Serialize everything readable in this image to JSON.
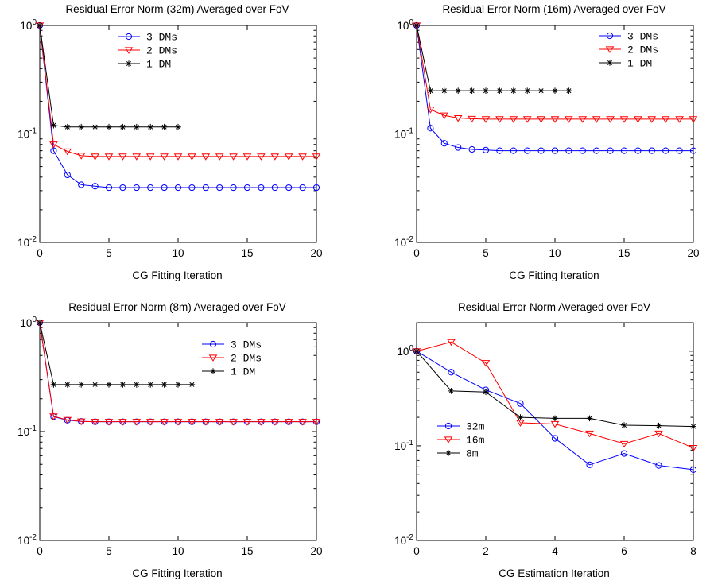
{
  "chart_data": [
    {
      "type": "line",
      "title": "Residual Error Norm (32m) Averaged over FoV",
      "xlabel": "CG Fitting Iteration",
      "ylabel": "",
      "yscale": "log",
      "xlim": [
        0,
        20
      ],
      "ylim": [
        0.01,
        1
      ],
      "xticks": [
        "0",
        "5",
        "10",
        "15",
        "20"
      ],
      "grid": false,
      "legend_position": "top-right",
      "series": [
        {
          "name": "3 DMs",
          "color": "#0000ff",
          "marker": "circle",
          "x": [
            0,
            1,
            2,
            3,
            4,
            5,
            6,
            7,
            8,
            9,
            10,
            11,
            12,
            13,
            14,
            15,
            16,
            17,
            18,
            19,
            20
          ],
          "y": [
            1,
            0.07,
            0.042,
            0.034,
            0.033,
            0.032,
            0.032,
            0.032,
            0.032,
            0.032,
            0.032,
            0.032,
            0.032,
            0.032,
            0.032,
            0.032,
            0.032,
            0.032,
            0.032,
            0.032,
            0.032
          ]
        },
        {
          "name": "2 DMs",
          "color": "#ff0000",
          "marker": "triangle-down",
          "x": [
            0,
            1,
            2,
            3,
            4,
            5,
            6,
            7,
            8,
            9,
            10,
            11,
            12,
            13,
            14,
            15,
            16,
            17,
            18,
            19,
            20
          ],
          "y": [
            1,
            0.08,
            0.069,
            0.063,
            0.062,
            0.062,
            0.062,
            0.062,
            0.062,
            0.062,
            0.062,
            0.062,
            0.062,
            0.062,
            0.062,
            0.062,
            0.062,
            0.062,
            0.062,
            0.062,
            0.062
          ]
        },
        {
          "name": "1 DM",
          "color": "#000000",
          "marker": "star",
          "x": [
            0,
            1,
            2,
            3,
            4,
            5,
            6,
            7,
            8,
            9,
            10
          ],
          "y": [
            1,
            0.12,
            0.116,
            0.116,
            0.116,
            0.116,
            0.116,
            0.116,
            0.116,
            0.116,
            0.116
          ]
        }
      ]
    },
    {
      "type": "line",
      "title": "Residual Error Norm (16m) Averaged over FoV",
      "xlabel": "CG Fitting Iteration",
      "ylabel": "",
      "yscale": "log",
      "xlim": [
        0,
        20
      ],
      "ylim": [
        0.01,
        1
      ],
      "xticks": [
        "0",
        "5",
        "10",
        "15",
        "20"
      ],
      "grid": false,
      "legend_position": "top-right",
      "series": [
        {
          "name": "3 DMs",
          "color": "#0000ff",
          "marker": "circle",
          "x": [
            0,
            1,
            2,
            3,
            4,
            5,
            6,
            7,
            8,
            9,
            10,
            11,
            12,
            13,
            14,
            15,
            16,
            17,
            18,
            19,
            20
          ],
          "y": [
            1,
            0.113,
            0.082,
            0.075,
            0.072,
            0.071,
            0.07,
            0.07,
            0.07,
            0.07,
            0.07,
            0.07,
            0.07,
            0.07,
            0.07,
            0.07,
            0.07,
            0.07,
            0.07,
            0.07,
            0.07
          ]
        },
        {
          "name": "2 DMs",
          "color": "#ff0000",
          "marker": "triangle-down",
          "x": [
            0,
            1,
            2,
            3,
            4,
            5,
            6,
            7,
            8,
            9,
            10,
            11,
            12,
            13,
            14,
            15,
            16,
            17,
            18,
            19,
            20
          ],
          "y": [
            1,
            0.168,
            0.148,
            0.14,
            0.138,
            0.137,
            0.137,
            0.137,
            0.137,
            0.137,
            0.137,
            0.137,
            0.137,
            0.137,
            0.137,
            0.137,
            0.137,
            0.137,
            0.137,
            0.137,
            0.137
          ]
        },
        {
          "name": "1 DM",
          "color": "#000000",
          "marker": "star",
          "x": [
            0,
            1,
            2,
            3,
            4,
            5,
            6,
            7,
            8,
            9,
            10,
            11
          ],
          "y": [
            1,
            0.25,
            0.25,
            0.25,
            0.25,
            0.25,
            0.25,
            0.25,
            0.25,
            0.25,
            0.25,
            0.25
          ]
        }
      ]
    },
    {
      "type": "line",
      "title": "Residual Error Norm (8m) Averaged over FoV",
      "xlabel": "CG Fitting Iteration",
      "ylabel": "",
      "yscale": "log",
      "xlim": [
        0,
        20
      ],
      "ylim": [
        0.01,
        1
      ],
      "xticks": [
        "0",
        "5",
        "10",
        "15",
        "20"
      ],
      "grid": false,
      "legend_position": "top-right",
      "series": [
        {
          "name": "3 DMs",
          "color": "#0000ff",
          "marker": "circle",
          "x": [
            0,
            1,
            2,
            3,
            4,
            5,
            6,
            7,
            8,
            9,
            10,
            11,
            12,
            13,
            14,
            15,
            16,
            17,
            18,
            19,
            20
          ],
          "y": [
            1,
            0.137,
            0.127,
            0.124,
            0.123,
            0.123,
            0.123,
            0.123,
            0.123,
            0.123,
            0.123,
            0.123,
            0.123,
            0.123,
            0.123,
            0.123,
            0.123,
            0.123,
            0.123,
            0.123,
            0.123
          ]
        },
        {
          "name": "2 DMs",
          "color": "#ff0000",
          "marker": "triangle-down",
          "x": [
            0,
            1,
            2,
            3,
            4,
            5,
            6,
            7,
            8,
            9,
            10,
            11,
            12,
            13,
            14,
            15,
            16,
            17,
            18,
            19,
            20
          ],
          "y": [
            1,
            0.138,
            0.128,
            0.124,
            0.123,
            0.123,
            0.123,
            0.123,
            0.123,
            0.123,
            0.123,
            0.123,
            0.123,
            0.123,
            0.123,
            0.123,
            0.123,
            0.123,
            0.123,
            0.123,
            0.123
          ]
        },
        {
          "name": "1 DM",
          "color": "#000000",
          "marker": "star",
          "x": [
            0,
            1,
            2,
            3,
            4,
            5,
            6,
            7,
            8,
            9,
            10,
            11
          ],
          "y": [
            1,
            0.27,
            0.27,
            0.27,
            0.27,
            0.27,
            0.27,
            0.27,
            0.27,
            0.27,
            0.27,
            0.27
          ]
        }
      ]
    },
    {
      "type": "line",
      "title": "Residual Error Norm Averaged over FoV",
      "xlabel": "CG Estimation Iteration",
      "ylabel": "",
      "yscale": "log",
      "xlim": [
        0,
        8
      ],
      "ylim": [
        0.01,
        2
      ],
      "xticks": [
        "0",
        "2",
        "4",
        "6",
        "8"
      ],
      "grid": false,
      "legend_position": "center-left",
      "series": [
        {
          "name": "32m",
          "color": "#0000ff",
          "marker": "circle",
          "x": [
            0,
            1,
            2,
            3,
            4,
            5,
            6,
            7,
            8
          ],
          "y": [
            1,
            0.6,
            0.39,
            0.28,
            0.12,
            0.063,
            0.083,
            0.062,
            0.056
          ]
        },
        {
          "name": "16m",
          "color": "#ff0000",
          "marker": "triangle-down",
          "x": [
            0,
            1,
            2,
            3,
            4,
            5,
            6,
            7,
            8
          ],
          "y": [
            1,
            1.25,
            0.75,
            0.175,
            0.17,
            0.135,
            0.105,
            0.135,
            0.095
          ]
        },
        {
          "name": "8m",
          "color": "#000000",
          "marker": "star",
          "x": [
            0,
            1,
            2,
            3,
            4,
            5,
            6,
            7,
            8
          ],
          "y": [
            1,
            0.38,
            0.37,
            0.2,
            0.195,
            0.195,
            0.165,
            0.163,
            0.16
          ]
        }
      ]
    }
  ]
}
